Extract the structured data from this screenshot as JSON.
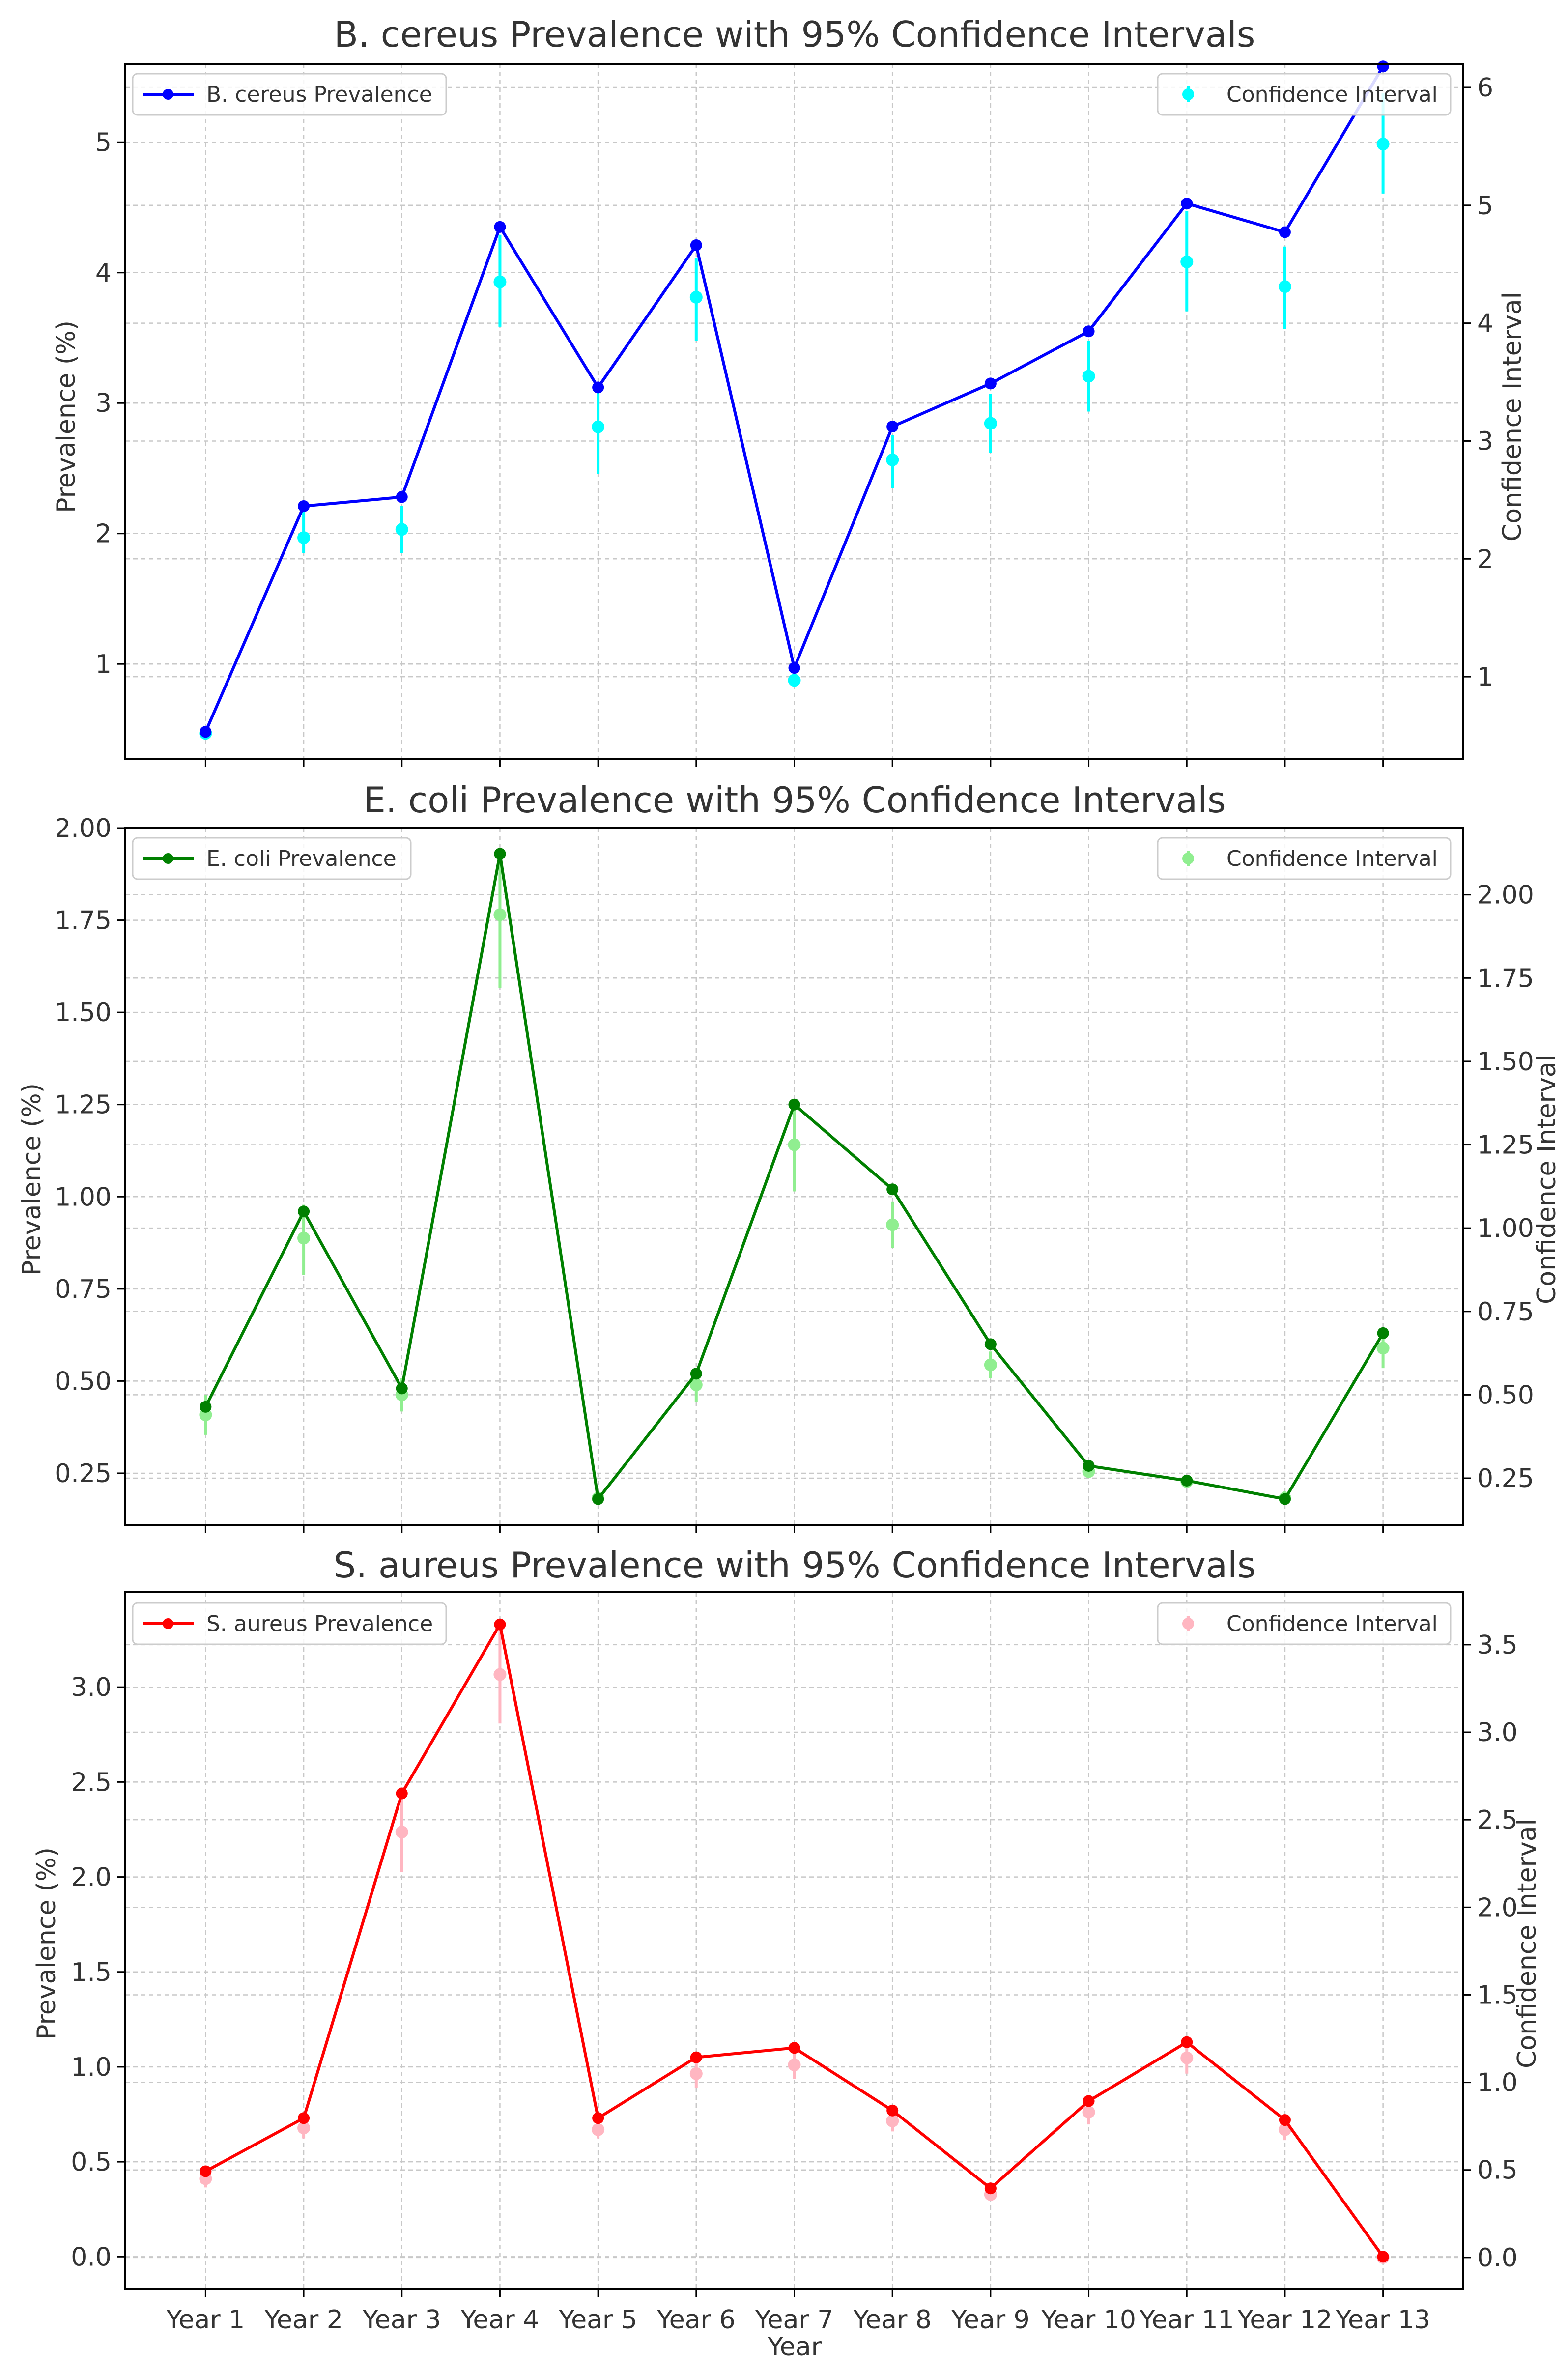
{
  "chart_data": [
    {
      "type": "line",
      "title": "B. cereus Prevalence with 95% Confidence Intervals",
      "xlabel": "",
      "ylabel": "Prevalence (%)",
      "y2label": "Confidence Interval",
      "categories": [
        "Year 1",
        "Year 2",
        "Year 3",
        "Year 4",
        "Year 5",
        "Year 6",
        "Year 7",
        "Year 8",
        "Year 9",
        "Year 10",
        "Year 11",
        "Year 12",
        "Year 13"
      ],
      "show_x_ticklabels": false,
      "ylim": [
        0.27,
        5.6
      ],
      "yticks": [
        1,
        2,
        3,
        4,
        5
      ],
      "ytick_labels": [
        "1",
        "2",
        "3",
        "4",
        "5"
      ],
      "y2lim": [
        0.3,
        6.2
      ],
      "y2ticks": [
        1,
        2,
        3,
        4,
        5,
        6
      ],
      "y2tick_labels": [
        "1",
        "2",
        "3",
        "4",
        "5",
        "6"
      ],
      "grid": true,
      "series": [
        {
          "name": "B. cereus Prevalence",
          "color": "#0000ff",
          "axis": "left",
          "values": [
            0.48,
            2.21,
            2.28,
            4.35,
            3.12,
            4.21,
            0.97,
            2.82,
            3.15,
            3.55,
            4.53,
            4.31,
            5.58
          ]
        }
      ],
      "ci": {
        "name": "Confidence Interval",
        "color": "#00ffff",
        "axis": "right",
        "mid": [
          0.52,
          2.18,
          2.25,
          4.35,
          3.12,
          4.22,
          0.97,
          2.84,
          3.15,
          3.55,
          4.52,
          4.31,
          5.52
        ],
        "low": [
          0.47,
          2.05,
          2.05,
          3.97,
          2.72,
          3.85,
          0.92,
          2.6,
          2.9,
          3.25,
          4.1,
          3.95,
          5.1
        ],
        "high": [
          0.57,
          2.4,
          2.45,
          4.75,
          3.5,
          4.55,
          1.02,
          3.05,
          3.4,
          3.85,
          4.95,
          4.65,
          5.95
        ]
      },
      "legend_left": "top-left",
      "legend_right": "top-right"
    },
    {
      "type": "line",
      "title": "E. coli Prevalence with 95% Confidence Intervals",
      "xlabel": "",
      "ylabel": "Prevalence (%)",
      "y2label": "Confidence Interval",
      "categories": [
        "Year 1",
        "Year 2",
        "Year 3",
        "Year 4",
        "Year 5",
        "Year 6",
        "Year 7",
        "Year 8",
        "Year 9",
        "Year 10",
        "Year 11",
        "Year 12",
        "Year 13"
      ],
      "show_x_ticklabels": false,
      "ylim": [
        0.11,
        2.0
      ],
      "yticks": [
        0.25,
        0.5,
        0.75,
        1.0,
        1.25,
        1.5,
        1.75,
        2.0
      ],
      "ytick_labels": [
        "0.25",
        "0.50",
        "0.75",
        "1.00",
        "1.25",
        "1.50",
        "1.75",
        "2.00"
      ],
      "y2lim": [
        0.11,
        2.2
      ],
      "y2ticks": [
        0.25,
        0.5,
        0.75,
        1.0,
        1.25,
        1.5,
        1.75,
        2.0
      ],
      "y2tick_labels": [
        "0.25",
        "0.50",
        "0.75",
        "1.00",
        "1.25",
        "1.50",
        "1.75",
        "2.00"
      ],
      "grid": true,
      "series": [
        {
          "name": "E. coli Prevalence",
          "color": "#008000",
          "axis": "left",
          "values": [
            0.43,
            0.96,
            0.48,
            1.93,
            0.18,
            0.52,
            1.25,
            1.02,
            0.6,
            0.27,
            0.23,
            0.18,
            0.63
          ]
        }
      ],
      "ci": {
        "name": "Confidence Interval",
        "color": "#90ee90",
        "axis": "right",
        "mid": [
          0.44,
          0.97,
          0.5,
          1.94,
          0.19,
          0.53,
          1.25,
          1.01,
          0.59,
          0.27,
          0.24,
          0.19,
          0.64
        ],
        "low": [
          0.38,
          0.86,
          0.45,
          1.72,
          0.17,
          0.48,
          1.11,
          0.94,
          0.55,
          0.25,
          0.22,
          0.17,
          0.58
        ],
        "high": [
          0.5,
          1.07,
          0.55,
          2.12,
          0.21,
          0.58,
          1.36,
          1.08,
          0.63,
          0.29,
          0.26,
          0.21,
          0.7
        ]
      },
      "legend_left": "top-left",
      "legend_right": "top-right"
    },
    {
      "type": "line",
      "title": "S. aureus Prevalence with 95% Confidence Intervals",
      "xlabel": "Year",
      "ylabel": "Prevalence (%)",
      "y2label": "Confidence Interval",
      "categories": [
        "Year 1",
        "Year 2",
        "Year 3",
        "Year 4",
        "Year 5",
        "Year 6",
        "Year 7",
        "Year 8",
        "Year 9",
        "Year 10",
        "Year 11",
        "Year 12",
        "Year 13"
      ],
      "show_x_ticklabels": true,
      "ylim": [
        -0.17,
        3.5
      ],
      "yticks": [
        0.0,
        0.5,
        1.0,
        1.5,
        2.0,
        2.5,
        3.0
      ],
      "ytick_labels": [
        "0.0",
        "0.5",
        "1.0",
        "1.5",
        "2.0",
        "2.5",
        "3.0"
      ],
      "y2lim": [
        -0.18,
        3.8
      ],
      "y2ticks": [
        0.0,
        0.5,
        1.0,
        1.5,
        2.0,
        2.5,
        3.0,
        3.5
      ],
      "y2tick_labels": [
        "0.0",
        "0.5",
        "1.0",
        "1.5",
        "2.0",
        "2.5",
        "3.0",
        "3.5"
      ],
      "grid": true,
      "series": [
        {
          "name": "S. aureus Prevalence",
          "color": "#ff0000",
          "axis": "left",
          "values": [
            0.45,
            0.73,
            2.44,
            3.33,
            0.73,
            1.05,
            1.1,
            0.77,
            0.36,
            0.82,
            1.13,
            0.72,
            0.0
          ]
        }
      ],
      "ci": {
        "name": "Confidence Interval",
        "color": "#ffb6c1",
        "axis": "right",
        "mid": [
          0.45,
          0.74,
          2.43,
          3.33,
          0.73,
          1.05,
          1.1,
          0.78,
          0.36,
          0.83,
          1.14,
          0.73,
          0.0
        ],
        "low": [
          0.4,
          0.68,
          2.2,
          3.05,
          0.68,
          0.97,
          1.02,
          0.72,
          0.33,
          0.76,
          1.05,
          0.67,
          0.0
        ],
        "high": [
          0.5,
          0.81,
          2.66,
          3.62,
          0.79,
          1.13,
          1.18,
          0.84,
          0.39,
          0.9,
          1.23,
          0.79,
          0.0
        ]
      },
      "legend_left": "top-left",
      "legend_right": "top-right"
    }
  ]
}
